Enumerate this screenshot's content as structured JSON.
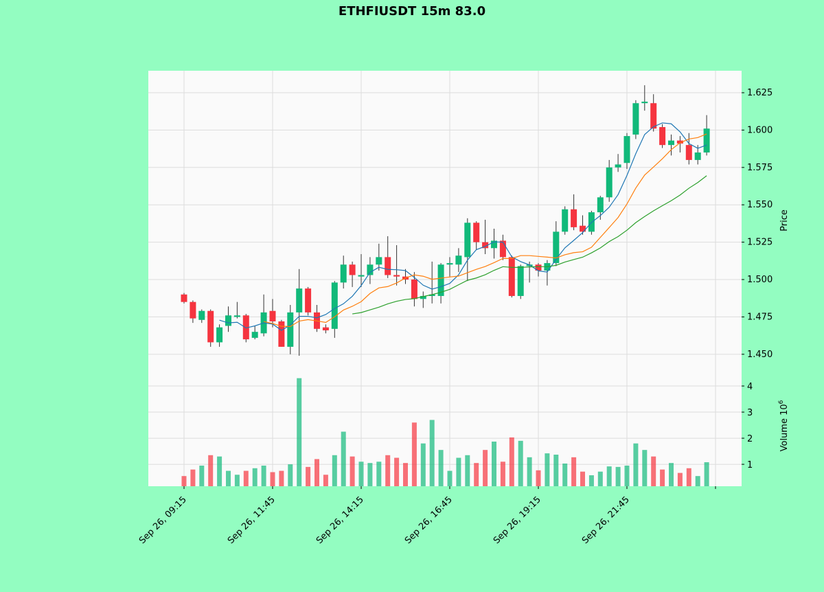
{
  "chart_data": {
    "type": "candlestick",
    "title": "ETHFIUSDT 15m 83.0",
    "ylabel_price": "Price",
    "ylabel_volume": "Volume  10",
    "ylabel_volume_exp": "6",
    "price_ylim": [
      1.4389,
      1.6397
    ],
    "volume_ylim": [
      0.16,
      4.58
    ],
    "price_ticks": [
      1.45,
      1.475,
      1.5,
      1.525,
      1.55,
      1.575,
      1.6,
      1.625
    ],
    "price_tick_labels": [
      "1.450",
      "1.475",
      "1.500",
      "1.525",
      "1.550",
      "1.575",
      "1.600",
      "1.625"
    ],
    "volume_ticks": [
      1,
      2,
      3,
      4
    ],
    "volume_tick_labels": [
      "1",
      "2",
      "3",
      "4"
    ],
    "x_tick_indices": [
      0,
      10,
      20,
      30,
      40,
      50,
      60
    ],
    "x_tick_labels": [
      "Sep 26, 09:15",
      "Sep 26, 11:45",
      "Sep 26, 14:15",
      "Sep 26, 16:45",
      "Sep 26, 19:15",
      "Sep 26, 21:45",
      ""
    ],
    "ma_periods": [
      5,
      10,
      20
    ],
    "ma_colors": [
      "#1f77b4",
      "#ff7f0e",
      "#2ca02c"
    ],
    "up_color": "#11b97a",
    "down_color": "#f5343f",
    "ohlc": [
      [
        1.49,
        1.491,
        1.484,
        1.485
      ],
      [
        1.485,
        1.486,
        1.471,
        1.474
      ],
      [
        1.473,
        1.48,
        1.471,
        1.479
      ],
      [
        1.479,
        1.48,
        1.455,
        1.458
      ],
      [
        1.458,
        1.47,
        1.455,
        1.468
      ],
      [
        1.469,
        1.482,
        1.465,
        1.476
      ],
      [
        1.475,
        1.485,
        1.474,
        1.476
      ],
      [
        1.476,
        1.477,
        1.458,
        1.46
      ],
      [
        1.461,
        1.469,
        1.46,
        1.465
      ],
      [
        1.464,
        1.49,
        1.462,
        1.478
      ],
      [
        1.479,
        1.487,
        1.468,
        1.472
      ],
      [
        1.472,
        1.473,
        1.455,
        1.455
      ],
      [
        1.455,
        1.483,
        1.45,
        1.478
      ],
      [
        1.478,
        1.507,
        1.449,
        1.494
      ],
      [
        1.494,
        1.495,
        1.476,
        1.478
      ],
      [
        1.478,
        1.483,
        1.465,
        1.467
      ],
      [
        1.468,
        1.47,
        1.464,
        1.466
      ],
      [
        1.467,
        1.499,
        1.461,
        1.498
      ],
      [
        1.498,
        1.516,
        1.494,
        1.51
      ],
      [
        1.51,
        1.512,
        1.495,
        1.503
      ],
      [
        1.502,
        1.517,
        1.495,
        1.503
      ],
      [
        1.503,
        1.515,
        1.497,
        1.51
      ],
      [
        1.51,
        1.524,
        1.506,
        1.515
      ],
      [
        1.515,
        1.529,
        1.501,
        1.503
      ],
      [
        1.503,
        1.523,
        1.496,
        1.502
      ],
      [
        1.502,
        1.507,
        1.497,
        1.5
      ],
      [
        1.5,
        1.505,
        1.482,
        1.487
      ],
      [
        1.487,
        1.492,
        1.481,
        1.489
      ],
      [
        1.489,
        1.512,
        1.484,
        1.49
      ],
      [
        1.489,
        1.511,
        1.484,
        1.51
      ],
      [
        1.51,
        1.515,
        1.502,
        1.511
      ],
      [
        1.51,
        1.521,
        1.505,
        1.516
      ],
      [
        1.515,
        1.541,
        1.499,
        1.538
      ],
      [
        1.538,
        1.539,
        1.52,
        1.525
      ],
      [
        1.525,
        1.54,
        1.517,
        1.521
      ],
      [
        1.521,
        1.534,
        1.514,
        1.526
      ],
      [
        1.526,
        1.53,
        1.513,
        1.515
      ],
      [
        1.515,
        1.516,
        1.488,
        1.489
      ],
      [
        1.489,
        1.51,
        1.487,
        1.509
      ],
      [
        1.509,
        1.512,
        1.498,
        1.51
      ],
      [
        1.51,
        1.511,
        1.502,
        1.506
      ],
      [
        1.506,
        1.513,
        1.496,
        1.511
      ],
      [
        1.511,
        1.539,
        1.509,
        1.532
      ],
      [
        1.532,
        1.549,
        1.53,
        1.547
      ],
      [
        1.547,
        1.557,
        1.533,
        1.535
      ],
      [
        1.536,
        1.543,
        1.53,
        1.532
      ],
      [
        1.532,
        1.546,
        1.53,
        1.545
      ],
      [
        1.545,
        1.556,
        1.54,
        1.555
      ],
      [
        1.555,
        1.58,
        1.552,
        1.575
      ],
      [
        1.575,
        1.584,
        1.572,
        1.577
      ],
      [
        1.578,
        1.598,
        1.574,
        1.596
      ],
      [
        1.597,
        1.62,
        1.594,
        1.618
      ],
      [
        1.618,
        1.63,
        1.613,
        1.619
      ],
      [
        1.618,
        1.624,
        1.599,
        1.601
      ],
      [
        1.602,
        1.604,
        1.588,
        1.59
      ],
      [
        1.59,
        1.597,
        1.583,
        1.593
      ],
      [
        1.593,
        1.596,
        1.585,
        1.591
      ],
      [
        1.59,
        1.598,
        1.577,
        1.58
      ],
      [
        1.58,
        1.59,
        1.577,
        1.585
      ],
      [
        1.585,
        1.61,
        1.583,
        1.601
      ]
    ],
    "volume": [
      0.55,
      0.8,
      0.95,
      1.35,
      1.3,
      0.75,
      0.6,
      0.75,
      0.85,
      0.95,
      0.7,
      0.75,
      1.0,
      4.3,
      0.9,
      1.2,
      0.6,
      1.35,
      2.25,
      1.3,
      1.1,
      1.05,
      1.1,
      1.35,
      1.25,
      1.05,
      2.6,
      1.8,
      2.7,
      1.55,
      0.75,
      1.25,
      1.35,
      1.05,
      1.55,
      1.87,
      1.1,
      2.03,
      1.9,
      1.27,
      0.77,
      1.42,
      1.37,
      1.03,
      1.27,
      0.72,
      0.58,
      0.72,
      0.92,
      0.9,
      0.95,
      1.8,
      1.55,
      1.3,
      0.8,
      1.05,
      0.67,
      0.85,
      0.55,
      1.08
    ]
  }
}
